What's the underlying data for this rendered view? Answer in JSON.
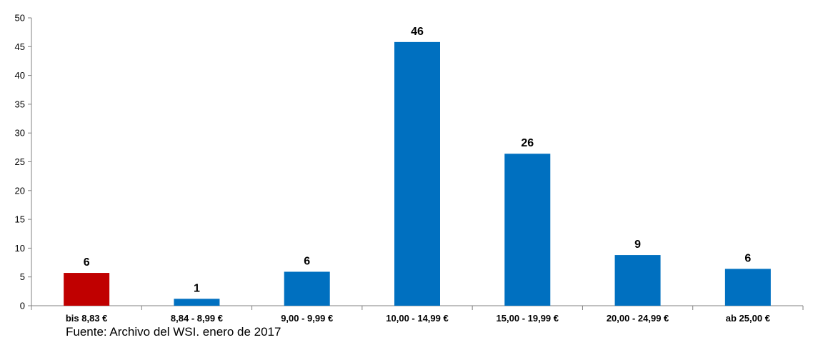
{
  "chart_data": {
    "type": "bar",
    "categories": [
      "bis 8,83 €",
      "8,84 - 8,99 €",
      "9,00 - 9,99 €",
      "10,00 - 14,99 €",
      "15,00 - 19,99 €",
      "20,00 - 24,99 €",
      "ab 25,00 €"
    ],
    "values": [
      5.7,
      1.2,
      5.9,
      45.8,
      26.4,
      8.8,
      6.4
    ],
    "data_labels": [
      "6",
      "1",
      "6",
      "46",
      "26",
      "9",
      "6"
    ],
    "highlight_index": 0,
    "ylim": [
      0,
      50
    ],
    "yticks": [
      0,
      5,
      10,
      15,
      20,
      25,
      30,
      35,
      40,
      45,
      50
    ],
    "grid": false,
    "colors": {
      "bar": "#0070C0",
      "highlight": "#C00000",
      "axis": "#808080"
    }
  },
  "source_note": "Fuente: Archivo del WSI. enero de 2017"
}
